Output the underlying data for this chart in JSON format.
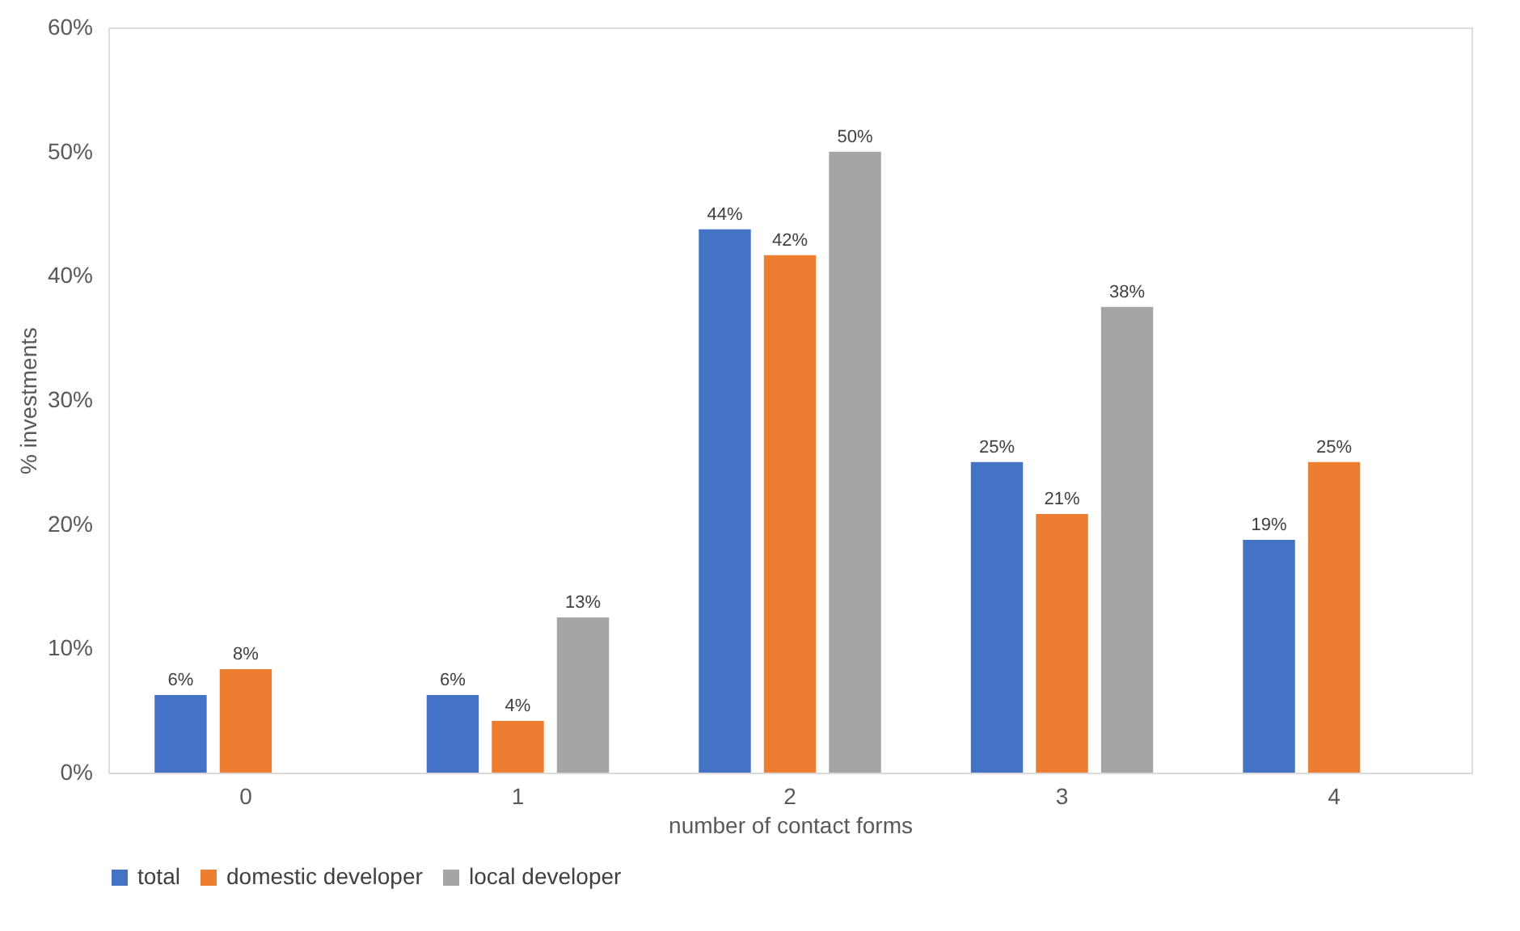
{
  "chart_data": {
    "type": "bar",
    "xlabel": "number of contact forms",
    "ylabel": "% investments",
    "categories": [
      "0",
      "1",
      "2",
      "3",
      "4"
    ],
    "ylim": [
      0,
      60
    ],
    "yticks": [
      {
        "value": 0,
        "label": "0%"
      },
      {
        "value": 10,
        "label": "10%"
      },
      {
        "value": 20,
        "label": "20%"
      },
      {
        "value": 30,
        "label": "30%"
      },
      {
        "value": 40,
        "label": "40%"
      },
      {
        "value": 50,
        "label": "50%"
      },
      {
        "value": 60,
        "label": "60%"
      }
    ],
    "series": [
      {
        "name": "total",
        "color": "#4472c4",
        "values": [
          6.25,
          6.25,
          43.75,
          25,
          18.75
        ],
        "value_labels": [
          "6%",
          "6%",
          "44%",
          "25%",
          "19%"
        ]
      },
      {
        "name": "domestic developer",
        "color": "#ed7d31",
        "values": [
          8.33,
          4.17,
          41.67,
          20.83,
          25
        ],
        "value_labels": [
          "8%",
          "4%",
          "42%",
          "21%",
          "25%"
        ]
      },
      {
        "name": "local developer",
        "color": "#a5a5a5",
        "values": [
          null,
          12.5,
          50,
          37.5,
          null
        ],
        "value_labels": [
          null,
          "13%",
          "50%",
          "38%",
          null
        ]
      }
    ],
    "legend": "bottom"
  }
}
